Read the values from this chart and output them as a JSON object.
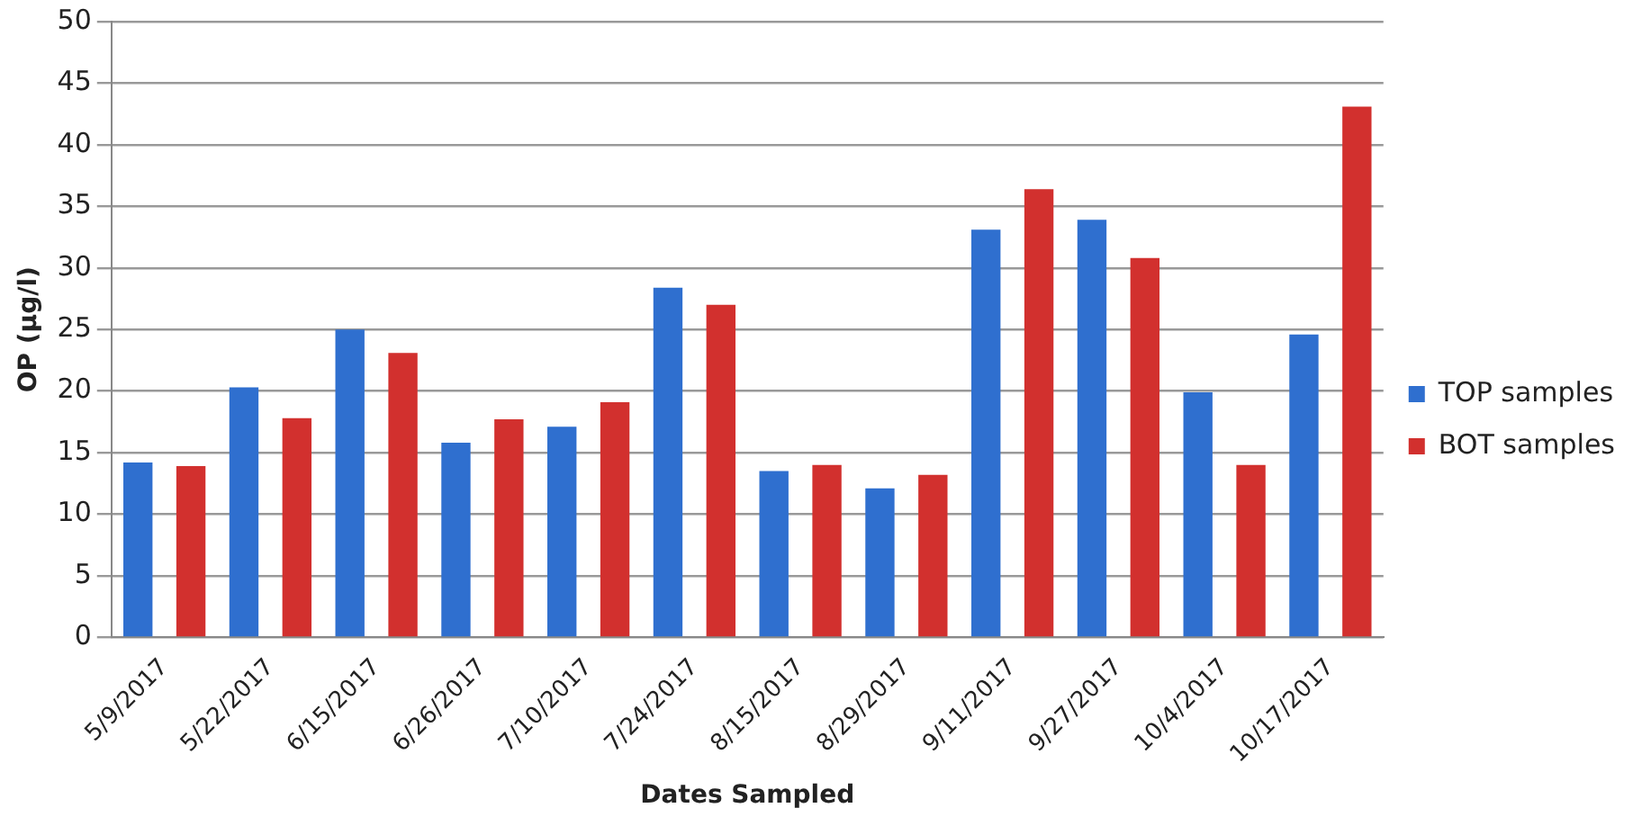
{
  "chart_data": {
    "type": "bar",
    "xlabel": "Dates Sampled",
    "ylabel": "OP (µg/l)",
    "categories": [
      "5/9/2017",
      "5/22/2017",
      "6/15/2017",
      "6/26/2017",
      "7/10/2017",
      "7/24/2017",
      "8/15/2017",
      "8/29/2017",
      "9/11/2017",
      "9/27/2017",
      "10/4/2017",
      "10/17/2017"
    ],
    "series": [
      {
        "name": "TOP samples",
        "color": "#2f6fcf",
        "values": [
          14.2,
          20.3,
          25,
          15.8,
          17.1,
          28.4,
          13.5,
          12.1,
          33.1,
          33.9,
          19.9,
          24.6
        ]
      },
      {
        "name": "BOT samples",
        "color": "#d2302e",
        "values": [
          13.9,
          17.8,
          23.1,
          17.7,
          19.1,
          27,
          14,
          13.2,
          36.4,
          30.8,
          14,
          43.1
        ]
      }
    ],
    "ylim": [
      0,
      50
    ],
    "yticks": [
      0,
      5,
      10,
      15,
      20,
      25,
      30,
      35,
      40,
      45,
      50
    ],
    "grid": "y",
    "legend": "right"
  }
}
